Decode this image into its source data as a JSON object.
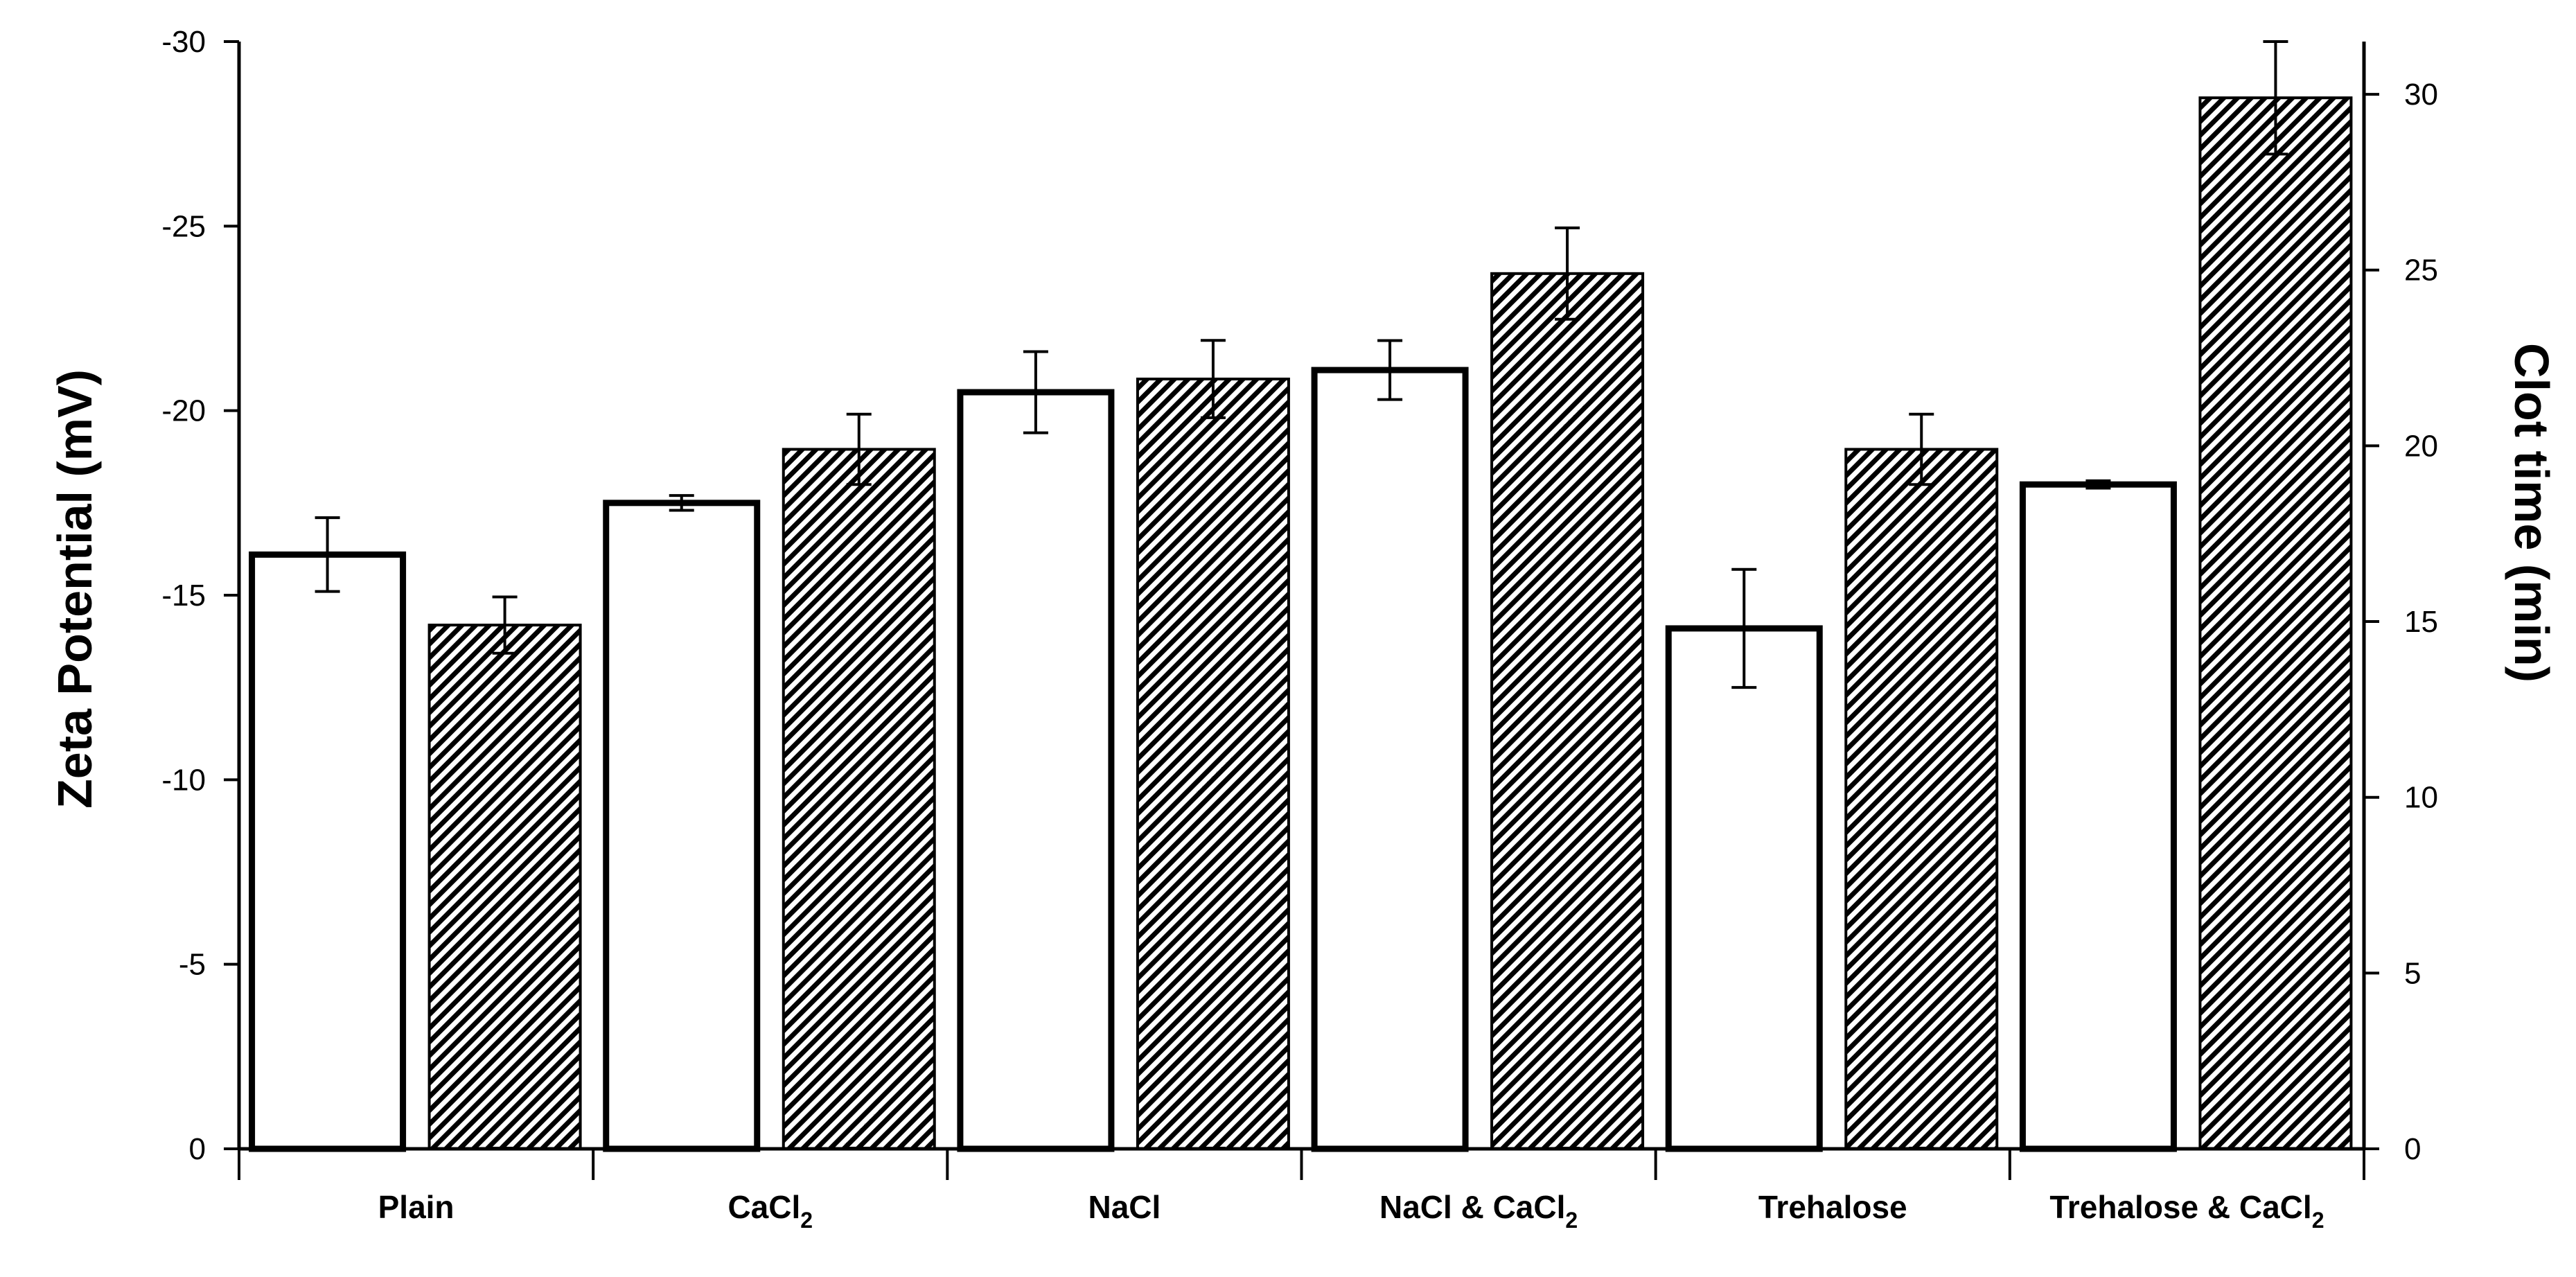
{
  "chart_data": {
    "type": "bar",
    "title": "",
    "categories": [
      {
        "main": "Plain",
        "sub": ""
      },
      {
        "main": "CaCl",
        "sub": "2"
      },
      {
        "main": "NaCl",
        "sub": ""
      },
      {
        "main": "NaCl & CaCl",
        "sub": "2"
      },
      {
        "main": "Trehalose",
        "sub": ""
      },
      {
        "main": "Trehalose & CaCl",
        "sub": "2"
      }
    ],
    "xlabel": "",
    "left_axis": {
      "label": "Zeta Potential (mV)",
      "range": [
        0,
        -30
      ],
      "ticks": [
        0,
        -5,
        -10,
        -15,
        -20,
        -25,
        -30
      ],
      "tick_labels": [
        "0",
        "-5",
        "-10",
        "-15",
        "-20",
        "-25",
        "-30"
      ]
    },
    "right_axis": {
      "label": "Clot time (min)",
      "range": [
        0,
        31.5
      ],
      "ticks": [
        0,
        5,
        10,
        15,
        20,
        25,
        30
      ],
      "tick_labels": [
        "0",
        "5",
        "10",
        "15",
        "20",
        "25",
        "30"
      ]
    },
    "series": [
      {
        "name": "Zeta Potential",
        "axis": "left",
        "fill": "white",
        "values": [
          -16.1,
          -17.5,
          -20.5,
          -21.1,
          -14.1,
          -18.0
        ],
        "errors": [
          1.0,
          0.2,
          1.1,
          0.8,
          1.6,
          0.1
        ]
      },
      {
        "name": "Clot time",
        "axis": "right",
        "fill": "hatched",
        "values": [
          14.9,
          19.9,
          21.9,
          24.9,
          19.9,
          29.9
        ],
        "errors": [
          0.8,
          1.0,
          1.1,
          1.3,
          1.0,
          1.6
        ]
      }
    ],
    "colors": {
      "bar_outline": "#000000",
      "bar_fill": "#ffffff",
      "hatch": "#000000"
    }
  }
}
